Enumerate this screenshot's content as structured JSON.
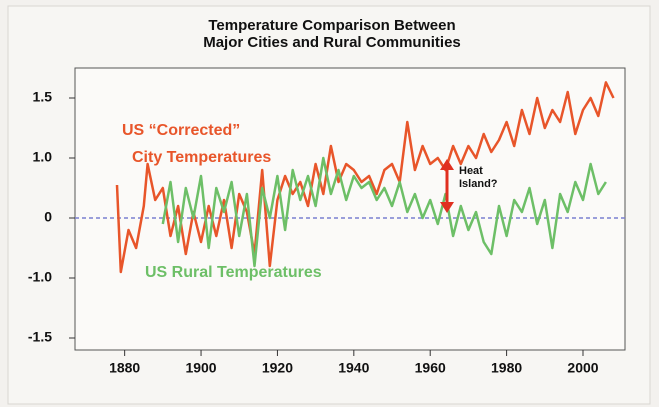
{
  "chart_data": {
    "type": "line",
    "title": [
      "Temperature Comparison Between",
      "Major Cities and Rural Communities"
    ],
    "annotations": [
      "US “Corrected”",
      "City Temperatures",
      "US Rural Temperatures",
      "Heat",
      "Island?"
    ],
    "xlim": [
      1867,
      2011
    ],
    "xticks": [
      1880,
      1900,
      1920,
      1940,
      1960,
      1980,
      2000
    ],
    "ylim": [
      -1.6,
      1.75
    ],
    "yticks": [
      1.5,
      {
        "value": 1,
        "label": "1.0"
      },
      0,
      {
        "value": -1,
        "label": "-1.0"
      },
      -1.5
    ],
    "reference_line": 0,
    "reference_color": "#7b7fd0",
    "series": [
      {
        "color": "#e8552a",
        "x": [
          1878,
          1879,
          1881,
          1883,
          1885,
          1886,
          1888,
          1890,
          1892,
          1894,
          1896,
          1898,
          1900,
          1902,
          1904,
          1906,
          1908,
          1910,
          1912,
          1914,
          1916,
          1918,
          1920,
          1922,
          1924,
          1926,
          1928,
          1930,
          1932,
          1934,
          1936,
          1938,
          1940,
          1942,
          1944,
          1946,
          1948,
          1950,
          1952,
          1954,
          1956,
          1958,
          1960,
          1962,
          1964,
          1966,
          1968,
          1970,
          1972,
          1974,
          1976,
          1978,
          1980,
          1982,
          1984,
          1986,
          1988,
          1990,
          1992,
          1994,
          1996,
          1998,
          2000,
          2002,
          2004,
          2006,
          2008
        ],
        "values": [
          0.55,
          -0.9,
          -0.2,
          -0.5,
          0.2,
          0.9,
          0.3,
          0.5,
          -0.3,
          0.2,
          -0.6,
          0.1,
          -0.4,
          0.2,
          -0.3,
          0.3,
          -0.5,
          0.4,
          0.1,
          -0.6,
          0.8,
          -0.8,
          0.3,
          0.7,
          0.4,
          0.6,
          0.2,
          0.9,
          0.4,
          1.1,
          0.6,
          0.9,
          0.8,
          0.6,
          0.7,
          0.4,
          0.8,
          0.9,
          0.6,
          1.3,
          0.8,
          1.1,
          0.9,
          1.0,
          0.8,
          1.1,
          0.9,
          1.1,
          1.0,
          1.2,
          1.05,
          1.15,
          1.3,
          1.1,
          1.4,
          1.2,
          1.5,
          1.25,
          1.4,
          1.3,
          1.55,
          1.2,
          1.4,
          1.5,
          1.35,
          1.63,
          1.5
        ]
      },
      {
        "color": "#6dbf67",
        "x": [
          1890,
          1892,
          1894,
          1896,
          1898,
          1900,
          1902,
          1904,
          1906,
          1908,
          1910,
          1912,
          1914,
          1916,
          1918,
          1920,
          1922,
          1924,
          1926,
          1928,
          1930,
          1932,
          1934,
          1936,
          1938,
          1940,
          1942,
          1944,
          1946,
          1948,
          1950,
          1952,
          1954,
          1956,
          1958,
          1960,
          1962,
          1964,
          1966,
          1968,
          1970,
          1972,
          1974,
          1976,
          1978,
          1980,
          1982,
          1984,
          1986,
          1988,
          1990,
          1992,
          1994,
          1996,
          1998,
          2000,
          2002,
          2004,
          2006
        ],
        "values": [
          -0.1,
          0.6,
          -0.4,
          0.5,
          0.0,
          0.7,
          -0.5,
          0.5,
          0.1,
          0.6,
          -0.3,
          0.4,
          -0.8,
          0.5,
          0.0,
          0.7,
          -0.2,
          0.8,
          0.3,
          0.7,
          0.2,
          1.0,
          0.4,
          0.8,
          0.3,
          0.7,
          0.5,
          0.6,
          0.3,
          0.5,
          0.2,
          0.6,
          0.1,
          0.4,
          0.0,
          0.3,
          -0.1,
          0.4,
          -0.3,
          0.2,
          -0.2,
          0.1,
          -0.4,
          -0.6,
          0.2,
          -0.3,
          0.3,
          0.1,
          0.5,
          -0.1,
          0.3,
          -0.5,
          0.4,
          0.1,
          0.6,
          0.3,
          0.9,
          0.4,
          0.6
        ]
      }
    ]
  }
}
